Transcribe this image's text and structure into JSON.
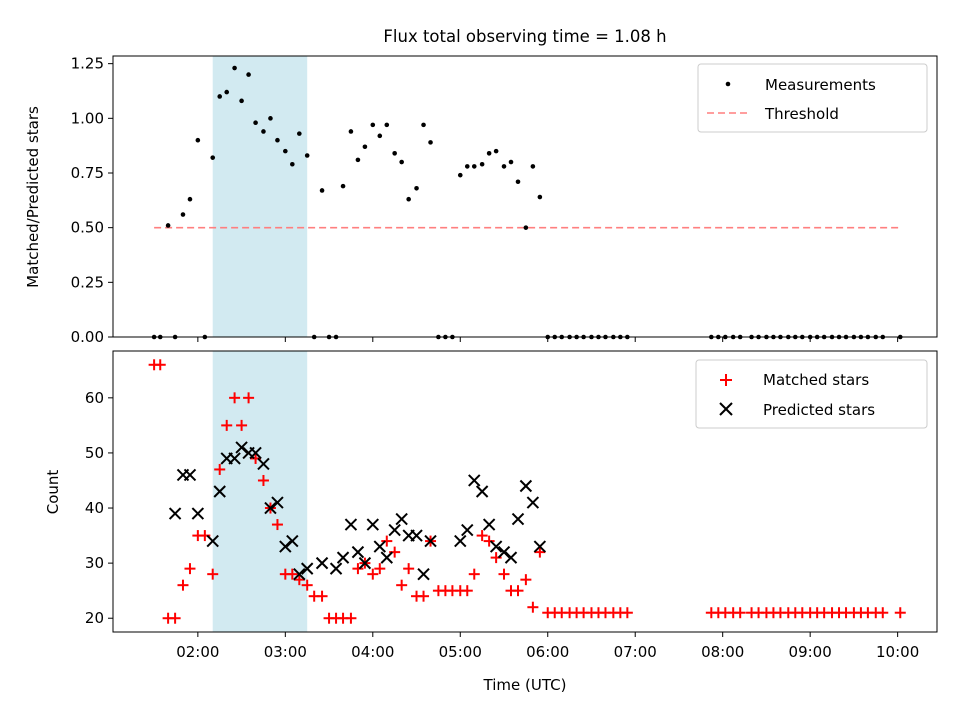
{
  "chart_data": {
    "title": "Flux total observing time = 1.08 h",
    "type": "scatter",
    "colors": {
      "measurement": "#000000",
      "threshold": "#ff7f7f",
      "matched": "#ff0000",
      "predicted": "#000000",
      "band": "#add8e6"
    },
    "highlight_span_hours": [
      2.17,
      3.25
    ],
    "x_ticks": [
      {
        "v": 2,
        "label": "02:00"
      },
      {
        "v": 3,
        "label": "03:00"
      },
      {
        "v": 4,
        "label": "04:00"
      },
      {
        "v": 5,
        "label": "05:00"
      },
      {
        "v": 6,
        "label": "06:00"
      },
      {
        "v": 7,
        "label": "07:00"
      },
      {
        "v": 8,
        "label": "08:00"
      },
      {
        "v": 9,
        "label": "09:00"
      },
      {
        "v": 10,
        "label": "10:00"
      }
    ],
    "xlabel": "Time (UTC)",
    "xlim": [
      1.03,
      10.45
    ],
    "top": {
      "ylabel": "Matched/Predicted stars",
      "ylim": [
        0,
        1.285
      ],
      "y_ticks": [
        "0.00",
        "0.25",
        "0.50",
        "0.75",
        "1.00",
        "1.25"
      ],
      "threshold": {
        "value": 0.5,
        "x_range": [
          1.5,
          10.03
        ]
      },
      "legend": {
        "measurements": "Measurements",
        "threshold": "Threshold"
      },
      "x": [
        1.5,
        1.57,
        1.66,
        1.74,
        1.83,
        1.91,
        2.0,
        2.08,
        2.17,
        2.25,
        2.33,
        2.42,
        2.5,
        2.58,
        2.66,
        2.75,
        2.83,
        2.91,
        3.0,
        3.08,
        3.16,
        3.25,
        3.33,
        3.42,
        3.5,
        3.58,
        3.66,
        3.75,
        3.83,
        3.91,
        4.0,
        4.08,
        4.16,
        4.25,
        4.33,
        4.41,
        4.5,
        4.58,
        4.66,
        4.75,
        4.83,
        4.91,
        5.0,
        5.08,
        5.16,
        5.25,
        5.33,
        5.41,
        5.5,
        5.58,
        5.66,
        5.75,
        5.83,
        5.91,
        6.0,
        6.08,
        6.16,
        6.25,
        6.33,
        6.41,
        6.5,
        6.58,
        6.66,
        6.75,
        6.83,
        6.91,
        7.87,
        7.95,
        8.03,
        8.12,
        8.2,
        8.33,
        8.41,
        8.5,
        8.58,
        8.66,
        8.75,
        8.83,
        8.91,
        9.0,
        9.08,
        9.16,
        9.25,
        9.33,
        9.41,
        9.5,
        9.58,
        9.66,
        9.75,
        9.83,
        10.03
      ],
      "y": [
        0,
        0,
        0.51,
        0,
        0.56,
        0.63,
        0.9,
        0,
        0.82,
        1.1,
        1.12,
        1.23,
        1.08,
        1.2,
        0.98,
        0.94,
        1.0,
        0.9,
        0.85,
        0.79,
        0.93,
        0.83,
        0,
        0.67,
        0,
        0,
        0.69,
        0.94,
        0.81,
        0.87,
        0.97,
        0.92,
        0.97,
        0.84,
        0.8,
        0.63,
        0.68,
        0.97,
        0.89,
        0,
        0,
        0,
        0.74,
        0.78,
        0.78,
        0.79,
        0.84,
        0.85,
        0.78,
        0.8,
        0.71,
        0.5,
        0.78,
        0.64,
        0,
        0,
        0,
        0,
        0,
        0,
        0,
        0,
        0,
        0,
        0,
        0,
        0,
        0,
        0,
        0,
        0,
        0,
        0,
        0,
        0,
        0,
        0,
        0,
        0,
        0,
        0,
        0,
        0,
        0,
        0,
        0,
        0,
        0,
        0,
        0,
        0
      ]
    },
    "bottom": {
      "ylabel": "Count",
      "ylim": [
        17.5,
        68.5
      ],
      "y_ticks": [
        "20",
        "30",
        "40",
        "50",
        "60"
      ],
      "legend": {
        "matched": "Matched stars",
        "predicted": "Predicted stars"
      },
      "matched": {
        "x": [
          1.5,
          1.57,
          1.66,
          1.74,
          1.83,
          1.91,
          2.0,
          2.08,
          2.17,
          2.25,
          2.33,
          2.42,
          2.5,
          2.58,
          2.66,
          2.75,
          2.83,
          2.91,
          3.0,
          3.08,
          3.16,
          3.25,
          3.33,
          3.42,
          3.5,
          3.58,
          3.66,
          3.75,
          3.83,
          3.91,
          4.0,
          4.08,
          4.16,
          4.25,
          4.33,
          4.41,
          4.5,
          4.58,
          4.66,
          4.75,
          4.83,
          4.91,
          5.0,
          5.08,
          5.16,
          5.25,
          5.33,
          5.41,
          5.5,
          5.58,
          5.66,
          5.75,
          5.83,
          5.91,
          6.0,
          6.08,
          6.16,
          6.25,
          6.33,
          6.41,
          6.5,
          6.58,
          6.66,
          6.75,
          6.83,
          6.91,
          7.87,
          7.95,
          8.03,
          8.12,
          8.2,
          8.33,
          8.41,
          8.5,
          8.58,
          8.66,
          8.75,
          8.83,
          8.91,
          9.0,
          9.08,
          9.16,
          9.25,
          9.33,
          9.41,
          9.5,
          9.58,
          9.66,
          9.75,
          9.83,
          10.03
        ],
        "y": [
          66,
          66,
          20,
          20,
          26,
          29,
          35,
          35,
          28,
          47,
          55,
          60,
          55,
          60,
          49,
          45,
          40,
          37,
          28,
          28,
          27,
          26,
          24,
          24,
          20,
          20,
          20,
          20,
          29,
          30,
          28,
          29,
          34,
          32,
          26,
          29,
          24,
          24,
          34,
          25,
          25,
          25,
          25,
          25,
          28,
          35,
          34,
          31,
          28,
          25,
          25,
          27,
          22,
          32,
          21,
          21,
          21,
          21,
          21,
          21,
          21,
          21,
          21,
          21,
          21,
          21,
          21,
          21,
          21,
          21,
          21,
          21,
          21,
          21,
          21,
          21,
          21,
          21,
          21,
          21,
          21,
          21,
          21,
          21,
          21,
          21,
          21,
          21,
          21,
          21,
          21
        ]
      },
      "predicted": {
        "x": [
          1.74,
          1.83,
          1.91,
          2.0,
          2.17,
          2.25,
          2.33,
          2.42,
          2.5,
          2.58,
          2.66,
          2.75,
          2.83,
          2.91,
          3.0,
          3.08,
          3.16,
          3.25,
          3.42,
          3.58,
          3.66,
          3.75,
          3.83,
          3.91,
          4.0,
          4.08,
          4.16,
          4.25,
          4.33,
          4.41,
          4.5,
          4.58,
          4.66,
          5.0,
          5.08,
          5.16,
          5.25,
          5.33,
          5.41,
          5.5,
          5.58,
          5.66,
          5.75,
          5.83,
          5.91
        ],
        "y": [
          39,
          46,
          46,
          39,
          34,
          43,
          49,
          49,
          51,
          50,
          50,
          48,
          40,
          41,
          33,
          34,
          28,
          29,
          30,
          29,
          31,
          37,
          32,
          30,
          37,
          33,
          31,
          36,
          38,
          35,
          35,
          28,
          34,
          34,
          36,
          45,
          43,
          37,
          33,
          32,
          31,
          38,
          44,
          41,
          33
        ]
      }
    }
  }
}
